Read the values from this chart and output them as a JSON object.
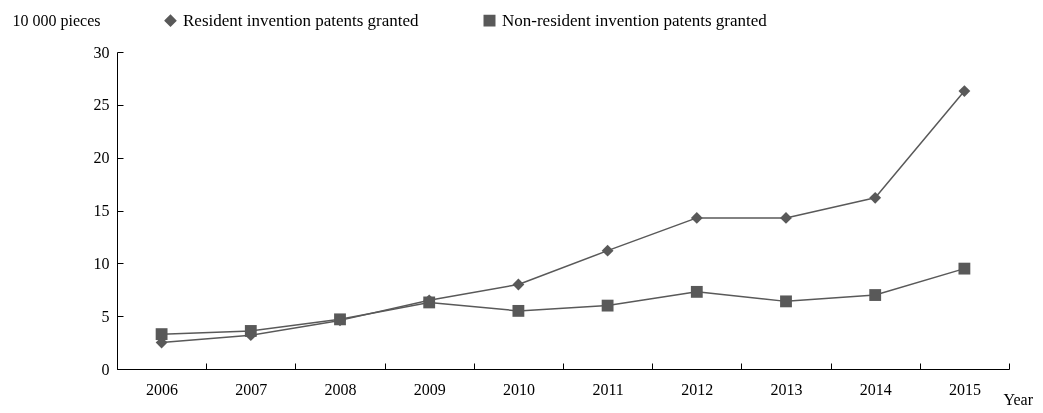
{
  "chart_data": {
    "type": "line",
    "xlabel": "Year",
    "ylabel": "10 000 pieces",
    "categories": [
      "2006",
      "2007",
      "2008",
      "2009",
      "2010",
      "2011",
      "2012",
      "2013",
      "2014",
      "2015"
    ],
    "series": [
      {
        "name": "Resident invention patents granted",
        "color": "#595959",
        "marker": "diamond",
        "values": [
          2.5,
          3.2,
          4.6,
          6.5,
          8.0,
          11.2,
          14.3,
          14.3,
          16.2,
          26.3
        ]
      },
      {
        "name": "Non-resident invention patents granted",
        "color": "#595959",
        "marker": "square",
        "values": [
          3.3,
          3.6,
          4.7,
          6.3,
          5.5,
          6.0,
          7.3,
          6.4,
          7.0,
          9.5
        ]
      }
    ],
    "ylim": [
      0,
      30
    ],
    "yticks": [
      0,
      5,
      10,
      15,
      20,
      25,
      30
    ],
    "legend": "top",
    "line_style": "solid"
  }
}
